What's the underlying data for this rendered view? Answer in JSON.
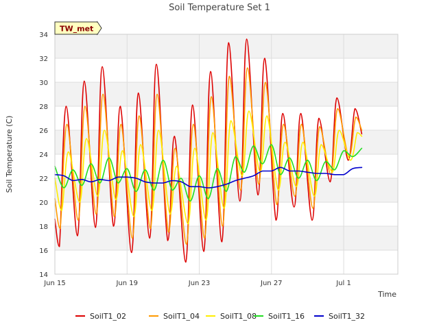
{
  "chart_data": {
    "type": "line",
    "title": "Soil Temperature Set 1",
    "xlabel": "Time",
    "ylabel": "Soil Temperature (C)",
    "badge": "TW_met",
    "ylim": [
      14,
      34
    ],
    "yticks": [
      14,
      16,
      18,
      20,
      22,
      24,
      26,
      28,
      30,
      32,
      34
    ],
    "xlim": [
      "2024-06-15",
      "2024-07-04"
    ],
    "xticks": [
      {
        "date": "2024-06-15",
        "label": "Jun 15"
      },
      {
        "date": "2024-06-19",
        "label": "Jun 19"
      },
      {
        "date": "2024-06-23",
        "label": "Jun 23"
      },
      {
        "date": "2024-06-27",
        "label": "Jun 27"
      },
      {
        "date": "2024-07-01",
        "label": "Jul 1"
      }
    ],
    "grid": true,
    "legend_position": "bottom",
    "series": [
      {
        "name": "SoilT1_02",
        "color": "#dd0000",
        "points": [
          [
            "2024-06-15 00:00",
            18.6
          ],
          [
            "2024-06-15 06:00",
            16.3
          ],
          [
            "2024-06-15 15:00",
            28.0
          ],
          [
            "2024-06-16 06:00",
            17.2
          ],
          [
            "2024-06-16 15:00",
            30.1
          ],
          [
            "2024-06-17 06:00",
            17.9
          ],
          [
            "2024-06-17 15:00",
            31.3
          ],
          [
            "2024-06-18 06:00",
            18.0
          ],
          [
            "2024-06-18 15:00",
            28.0
          ],
          [
            "2024-06-19 06:00",
            15.8
          ],
          [
            "2024-06-19 15:00",
            29.1
          ],
          [
            "2024-06-20 06:00",
            17.0
          ],
          [
            "2024-06-20 15:00",
            31.5
          ],
          [
            "2024-06-21 06:00",
            16.8
          ],
          [
            "2024-06-21 15:00",
            25.5
          ],
          [
            "2024-06-22 06:00",
            15.0
          ],
          [
            "2024-06-22 15:00",
            28.1
          ],
          [
            "2024-06-23 06:00",
            15.9
          ],
          [
            "2024-06-23 15:00",
            30.9
          ],
          [
            "2024-06-24 06:00",
            16.7
          ],
          [
            "2024-06-24 15:00",
            33.3
          ],
          [
            "2024-06-25 06:00",
            20.1
          ],
          [
            "2024-06-25 15:00",
            33.6
          ],
          [
            "2024-06-26 06:00",
            20.6
          ],
          [
            "2024-06-26 15:00",
            32.0
          ],
          [
            "2024-06-27 06:00",
            18.5
          ],
          [
            "2024-06-27 15:00",
            27.4
          ],
          [
            "2024-06-28 06:00",
            19.6
          ],
          [
            "2024-06-28 15:00",
            27.4
          ],
          [
            "2024-06-29 06:00",
            18.5
          ],
          [
            "2024-06-29 15:00",
            27.0
          ],
          [
            "2024-06-30 06:00",
            21.7
          ],
          [
            "2024-06-30 15:00",
            28.7
          ],
          [
            "2024-07-01 06:00",
            23.5
          ],
          [
            "2024-07-01 15:00",
            27.8
          ],
          [
            "2024-07-02 00:00",
            25.7
          ]
        ]
      },
      {
        "name": "SoilT1_04",
        "color": "#ff9900",
        "points": [
          [
            "2024-06-15 00:00",
            20.3
          ],
          [
            "2024-06-15 07:00",
            17.8
          ],
          [
            "2024-06-15 16:00",
            26.5
          ],
          [
            "2024-06-16 07:00",
            18.5
          ],
          [
            "2024-06-16 16:00",
            28.0
          ],
          [
            "2024-06-17 07:00",
            19.0
          ],
          [
            "2024-06-17 16:00",
            29.0
          ],
          [
            "2024-06-18 07:00",
            18.8
          ],
          [
            "2024-06-18 16:00",
            26.5
          ],
          [
            "2024-06-19 07:00",
            17.0
          ],
          [
            "2024-06-19 16:00",
            27.2
          ],
          [
            "2024-06-20 07:00",
            17.8
          ],
          [
            "2024-06-20 16:00",
            29.0
          ],
          [
            "2024-06-21 07:00",
            17.5
          ],
          [
            "2024-06-21 16:00",
            24.5
          ],
          [
            "2024-06-22 07:00",
            16.5
          ],
          [
            "2024-06-22 16:00",
            26.5
          ],
          [
            "2024-06-23 07:00",
            17.0
          ],
          [
            "2024-06-23 16:00",
            28.8
          ],
          [
            "2024-06-24 07:00",
            18.0
          ],
          [
            "2024-06-24 16:00",
            30.5
          ],
          [
            "2024-06-25 07:00",
            21.0
          ],
          [
            "2024-06-25 16:00",
            31.2
          ],
          [
            "2024-06-26 07:00",
            21.5
          ],
          [
            "2024-06-26 16:00",
            30.0
          ],
          [
            "2024-06-27 07:00",
            19.8
          ],
          [
            "2024-06-27 16:00",
            26.5
          ],
          [
            "2024-06-28 07:00",
            20.5
          ],
          [
            "2024-06-28 16:00",
            26.5
          ],
          [
            "2024-06-29 07:00",
            19.5
          ],
          [
            "2024-06-29 16:00",
            26.3
          ],
          [
            "2024-06-30 07:00",
            22.3
          ],
          [
            "2024-06-30 16:00",
            27.8
          ],
          [
            "2024-07-01 07:00",
            23.8
          ],
          [
            "2024-07-01 16:00",
            27.1
          ],
          [
            "2024-07-02 00:00",
            26.0
          ]
        ]
      },
      {
        "name": "SoilT1_08",
        "color": "#ffee00",
        "points": [
          [
            "2024-06-15 00:00",
            22.0
          ],
          [
            "2024-06-15 09:00",
            19.3
          ],
          [
            "2024-06-15 18:00",
            24.2
          ],
          [
            "2024-06-16 09:00",
            20.0
          ],
          [
            "2024-06-16 18:00",
            25.3
          ],
          [
            "2024-06-17 09:00",
            20.5
          ],
          [
            "2024-06-17 18:00",
            26.0
          ],
          [
            "2024-06-18 09:00",
            20.2
          ],
          [
            "2024-06-18 18:00",
            24.3
          ],
          [
            "2024-06-19 09:00",
            18.8
          ],
          [
            "2024-06-19 18:00",
            24.8
          ],
          [
            "2024-06-20 09:00",
            19.3
          ],
          [
            "2024-06-20 18:00",
            26.0
          ],
          [
            "2024-06-21 09:00",
            19.0
          ],
          [
            "2024-06-21 18:00",
            23.0
          ],
          [
            "2024-06-22 09:00",
            18.2
          ],
          [
            "2024-06-22 18:00",
            24.5
          ],
          [
            "2024-06-23 09:00",
            18.5
          ],
          [
            "2024-06-23 18:00",
            25.8
          ],
          [
            "2024-06-24 09:00",
            19.5
          ],
          [
            "2024-06-24 18:00",
            26.8
          ],
          [
            "2024-06-25 09:00",
            22.2
          ],
          [
            "2024-06-25 18:00",
            27.6
          ],
          [
            "2024-06-26 09:00",
            22.5
          ],
          [
            "2024-06-26 18:00",
            27.2
          ],
          [
            "2024-06-27 09:00",
            21.0
          ],
          [
            "2024-06-27 18:00",
            25.0
          ],
          [
            "2024-06-28 09:00",
            21.3
          ],
          [
            "2024-06-28 18:00",
            25.0
          ],
          [
            "2024-06-29 09:00",
            20.5
          ],
          [
            "2024-06-29 18:00",
            24.8
          ],
          [
            "2024-06-30 09:00",
            22.5
          ],
          [
            "2024-06-30 18:00",
            26.0
          ],
          [
            "2024-07-01 09:00",
            23.5
          ],
          [
            "2024-07-01 18:00",
            25.8
          ],
          [
            "2024-07-02 00:00",
            25.5
          ]
        ]
      },
      {
        "name": "SoilT1_16",
        "color": "#22dd22",
        "points": [
          [
            "2024-06-15 00:00",
            23.0
          ],
          [
            "2024-06-15 12:00",
            21.2
          ],
          [
            "2024-06-16 00:00",
            22.7
          ],
          [
            "2024-06-16 12:00",
            21.4
          ],
          [
            "2024-06-17 00:00",
            23.2
          ],
          [
            "2024-06-17 12:00",
            21.6
          ],
          [
            "2024-06-18 00:00",
            23.7
          ],
          [
            "2024-06-18 12:00",
            21.6
          ],
          [
            "2024-06-19 00:00",
            22.8
          ],
          [
            "2024-06-19 12:00",
            20.9
          ],
          [
            "2024-06-20 00:00",
            22.7
          ],
          [
            "2024-06-20 12:00",
            21.0
          ],
          [
            "2024-06-21 00:00",
            23.5
          ],
          [
            "2024-06-21 12:00",
            21.0
          ],
          [
            "2024-06-22 00:00",
            22.0
          ],
          [
            "2024-06-22 12:00",
            20.1
          ],
          [
            "2024-06-23 00:00",
            22.2
          ],
          [
            "2024-06-23 12:00",
            20.3
          ],
          [
            "2024-06-24 00:00",
            22.8
          ],
          [
            "2024-06-24 12:00",
            20.9
          ],
          [
            "2024-06-25 00:00",
            23.8
          ],
          [
            "2024-06-25 12:00",
            22.5
          ],
          [
            "2024-06-26 00:00",
            24.7
          ],
          [
            "2024-06-26 12:00",
            23.2
          ],
          [
            "2024-06-27 00:00",
            24.8
          ],
          [
            "2024-06-27 12:00",
            22.3
          ],
          [
            "2024-06-28 00:00",
            23.7
          ],
          [
            "2024-06-28 12:00",
            22.0
          ],
          [
            "2024-06-29 00:00",
            23.5
          ],
          [
            "2024-06-29 12:00",
            21.8
          ],
          [
            "2024-06-30 00:00",
            23.4
          ],
          [
            "2024-06-30 12:00",
            22.7
          ],
          [
            "2024-07-01 00:00",
            24.3
          ],
          [
            "2024-07-01 12:00",
            23.8
          ],
          [
            "2024-07-02 00:00",
            24.5
          ]
        ]
      },
      {
        "name": "SoilT1_32",
        "color": "#0000cc",
        "points": [
          [
            "2024-06-15 00:00",
            22.3
          ],
          [
            "2024-06-15 12:00",
            22.2
          ],
          [
            "2024-06-16 00:00",
            21.8
          ],
          [
            "2024-06-16 12:00",
            21.9
          ],
          [
            "2024-06-17 00:00",
            21.7
          ],
          [
            "2024-06-17 12:00",
            21.9
          ],
          [
            "2024-06-18 00:00",
            21.8
          ],
          [
            "2024-06-18 12:00",
            22.1
          ],
          [
            "2024-06-19 00:00",
            22.1
          ],
          [
            "2024-06-19 12:00",
            22.0
          ],
          [
            "2024-06-20 00:00",
            21.7
          ],
          [
            "2024-06-20 12:00",
            21.6
          ],
          [
            "2024-06-21 00:00",
            21.6
          ],
          [
            "2024-06-21 12:00",
            21.8
          ],
          [
            "2024-06-22 00:00",
            21.7
          ],
          [
            "2024-06-22 12:00",
            21.3
          ],
          [
            "2024-06-23 00:00",
            21.3
          ],
          [
            "2024-06-23 12:00",
            21.2
          ],
          [
            "2024-06-24 00:00",
            21.3
          ],
          [
            "2024-06-24 12:00",
            21.5
          ],
          [
            "2024-06-25 00:00",
            21.8
          ],
          [
            "2024-06-25 12:00",
            22.0
          ],
          [
            "2024-06-26 00:00",
            22.2
          ],
          [
            "2024-06-26 12:00",
            22.6
          ],
          [
            "2024-06-27 00:00",
            22.6
          ],
          [
            "2024-06-27 12:00",
            22.9
          ],
          [
            "2024-06-28 00:00",
            22.6
          ],
          [
            "2024-06-28 12:00",
            22.6
          ],
          [
            "2024-06-29 00:00",
            22.5
          ],
          [
            "2024-06-29 12:00",
            22.4
          ],
          [
            "2024-06-30 00:00",
            22.4
          ],
          [
            "2024-06-30 12:00",
            22.3
          ],
          [
            "2024-07-01 00:00",
            22.3
          ],
          [
            "2024-07-01 12:00",
            22.8
          ],
          [
            "2024-07-02 00:00",
            22.9
          ]
        ]
      }
    ]
  }
}
